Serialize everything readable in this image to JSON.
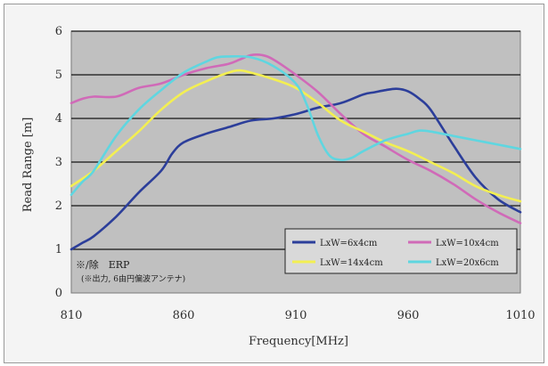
{
  "chart_data": {
    "type": "line",
    "xlabel": "Frequency[MHz]",
    "ylabel": "Read Range [m]",
    "xlim": [
      810,
      1010
    ],
    "ylim": [
      0,
      6
    ],
    "xticks": [
      810,
      860,
      910,
      960,
      1010
    ],
    "yticks": [
      0,
      1,
      2,
      3,
      4,
      5,
      6
    ],
    "grid": "horizontal",
    "plot_background": "#c0c0c0",
    "legend_position": "bottom-right",
    "series": [
      {
        "name": "LxW=6x4cm",
        "color": "#2c3e9a",
        "x": [
          810,
          815,
          820,
          830,
          840,
          850,
          855,
          860,
          870,
          880,
          890,
          900,
          910,
          920,
          930,
          940,
          945,
          950,
          955,
          960,
          965,
          970,
          980,
          990,
          1000,
          1010
        ],
        "y": [
          1.0,
          1.15,
          1.3,
          1.75,
          2.3,
          2.8,
          3.2,
          3.45,
          3.65,
          3.8,
          3.95,
          4.0,
          4.1,
          4.25,
          4.35,
          4.55,
          4.6,
          4.65,
          4.68,
          4.62,
          4.45,
          4.2,
          3.4,
          2.65,
          2.15,
          1.85
        ]
      },
      {
        "name": "LxW=10x4cm",
        "color": "#d06ab8",
        "x": [
          810,
          815,
          820,
          830,
          840,
          850,
          860,
          870,
          880,
          885,
          890,
          895,
          900,
          910,
          920,
          930,
          940,
          950,
          960,
          970,
          980,
          990,
          1000,
          1010
        ],
        "y": [
          4.35,
          4.45,
          4.5,
          4.5,
          4.7,
          4.8,
          5.0,
          5.15,
          5.25,
          5.35,
          5.45,
          5.45,
          5.35,
          5.0,
          4.6,
          4.1,
          3.65,
          3.35,
          3.05,
          2.8,
          2.5,
          2.15,
          1.85,
          1.6
        ]
      },
      {
        "name": "LxW=14x4cm",
        "color": "#f3ef52",
        "x": [
          810,
          820,
          830,
          840,
          850,
          860,
          870,
          880,
          885,
          890,
          900,
          910,
          920,
          930,
          940,
          950,
          960,
          970,
          980,
          990,
          1000,
          1010
        ],
        "y": [
          2.45,
          2.8,
          3.25,
          3.7,
          4.2,
          4.6,
          4.85,
          5.05,
          5.1,
          5.05,
          4.9,
          4.7,
          4.35,
          3.95,
          3.7,
          3.45,
          3.25,
          3.0,
          2.75,
          2.45,
          2.25,
          2.1
        ]
      },
      {
        "name": "LxW=20x6cm",
        "color": "#5fd6e0",
        "x": [
          810,
          815,
          820,
          830,
          840,
          850,
          860,
          870,
          875,
          880,
          890,
          900,
          910,
          915,
          920,
          925,
          930,
          935,
          940,
          950,
          960,
          965,
          970,
          980,
          990,
          1000,
          1010
        ],
        "y": [
          2.25,
          2.55,
          2.8,
          3.6,
          4.2,
          4.65,
          5.05,
          5.3,
          5.4,
          5.42,
          5.4,
          5.2,
          4.8,
          4.3,
          3.6,
          3.15,
          3.05,
          3.1,
          3.25,
          3.5,
          3.65,
          3.72,
          3.7,
          3.6,
          3.5,
          3.4,
          3.3
        ]
      }
    ],
    "annotation": {
      "line1": "※/除　ERP",
      "line2": "(※出力, 6由円偏波アンテナ)"
    }
  }
}
